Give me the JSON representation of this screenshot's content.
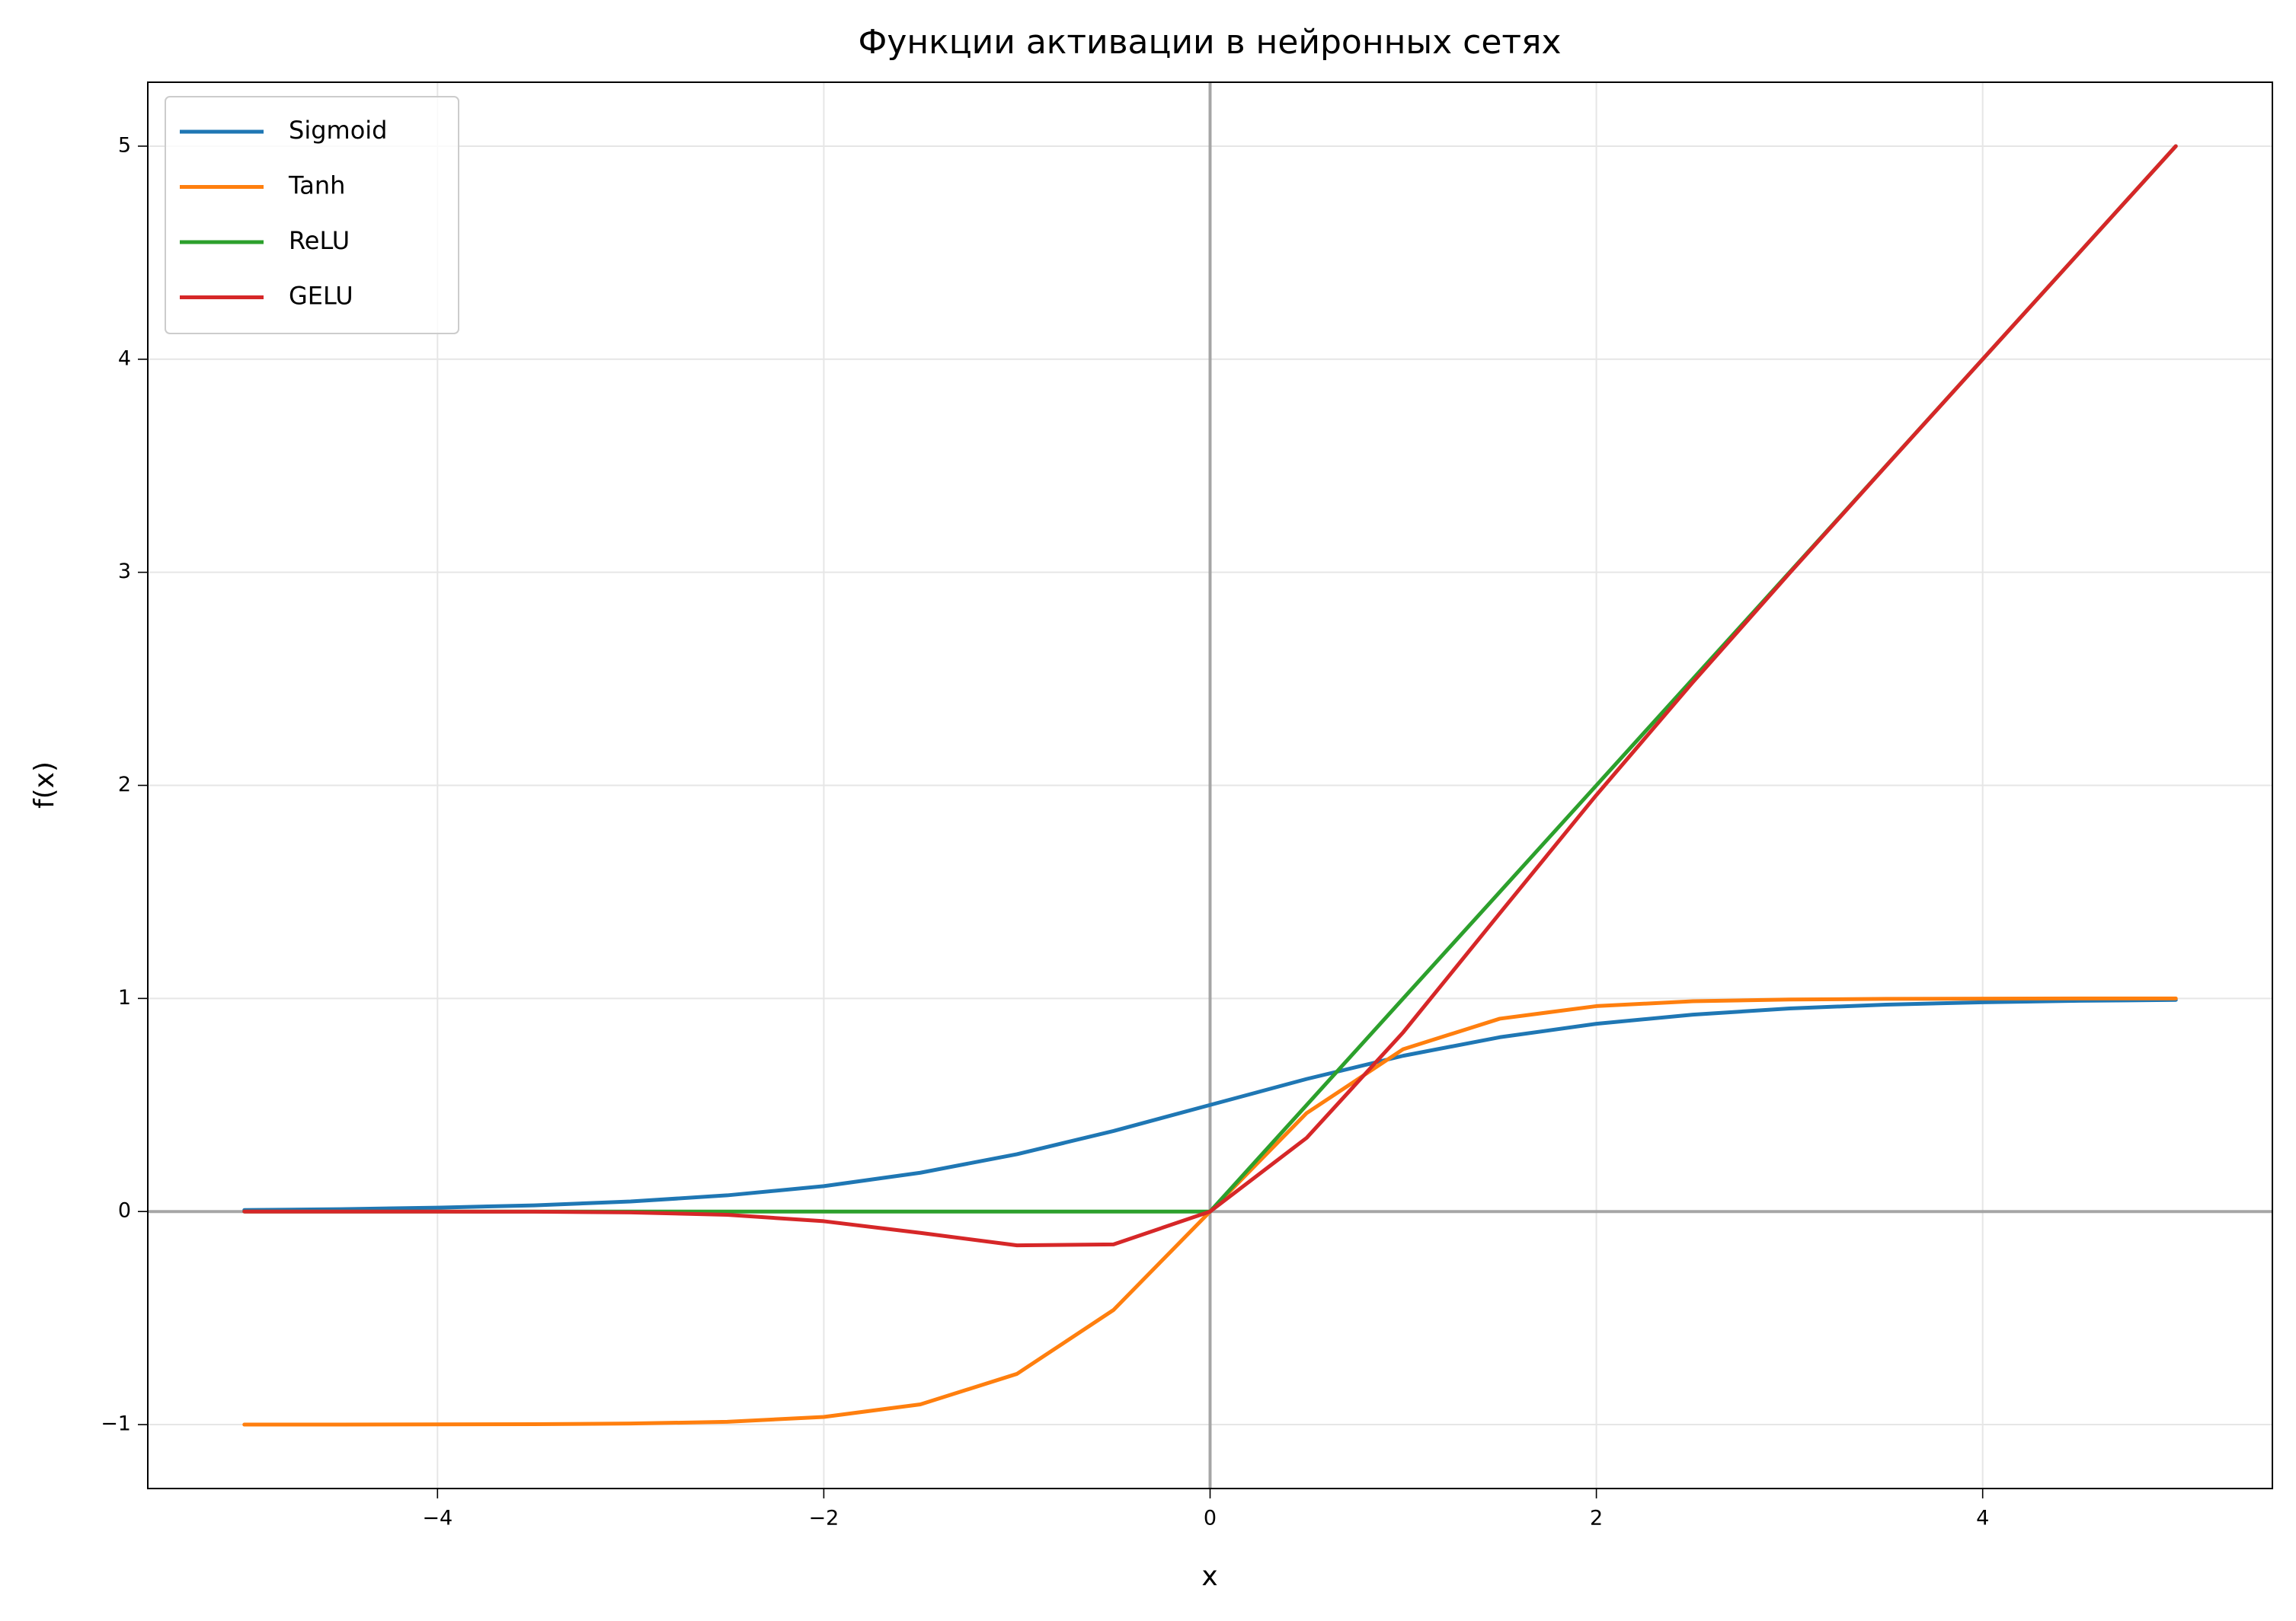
{
  "chart_data": {
    "type": "line",
    "title": "Функции активации в нейронных сетях",
    "x_label": "x",
    "y_label": "f(x)",
    "x": [
      -5,
      -4.5,
      -4,
      -3.5,
      -3,
      -2.5,
      -2,
      -1.5,
      -1,
      -0.5,
      0,
      0.5,
      1,
      1.5,
      2,
      2.5,
      3,
      3.5,
      4,
      4.5,
      5
    ],
    "series": [
      {
        "name": "Sigmoid",
        "color": "#1f77b4",
        "values": [
          0.007,
          0.011,
          0.018,
          0.029,
          0.047,
          0.076,
          0.119,
          0.182,
          0.269,
          0.378,
          0.5,
          0.622,
          0.731,
          0.818,
          0.881,
          0.924,
          0.953,
          0.971,
          0.982,
          0.989,
          0.993
        ]
      },
      {
        "name": "Tanh",
        "color": "#ff7f0e",
        "values": [
          -1.0,
          -1.0,
          -0.999,
          -0.998,
          -0.995,
          -0.987,
          -0.964,
          -0.905,
          -0.762,
          -0.462,
          0,
          0.462,
          0.762,
          0.905,
          0.964,
          0.987,
          0.995,
          0.998,
          0.999,
          1.0,
          1.0
        ]
      },
      {
        "name": "ReLU",
        "color": "#2ca02c",
        "values": [
          0,
          0,
          0,
          0,
          0,
          0,
          0,
          0,
          0,
          0,
          0,
          0.5,
          1,
          1.5,
          2,
          2.5,
          3,
          3.5,
          4,
          4.5,
          5
        ]
      },
      {
        "name": "GELU",
        "color": "#d62728",
        "values": [
          0,
          0,
          -0.0001,
          -0.0008,
          -0.004,
          -0.0155,
          -0.0455,
          -0.1002,
          -0.1587,
          -0.1543,
          0,
          0.3457,
          0.8413,
          1.3998,
          1.9545,
          2.4845,
          2.996,
          3.4992,
          3.9999,
          4.5,
          5
        ]
      }
    ],
    "xlim": [
      -5.5,
      5.5
    ],
    "ylim": [
      -1.3,
      5.3
    ],
    "xticks": [
      {
        "value": -4,
        "label": "−4"
      },
      {
        "value": -2,
        "label": "−2"
      },
      0,
      2,
      4
    ],
    "yticks": [
      {
        "value": -1,
        "label": "−1"
      },
      0,
      1,
      2,
      3,
      4,
      5
    ],
    "hlines": [
      0
    ],
    "vlines": [
      0
    ],
    "grid": true,
    "legend": "upper-left"
  }
}
